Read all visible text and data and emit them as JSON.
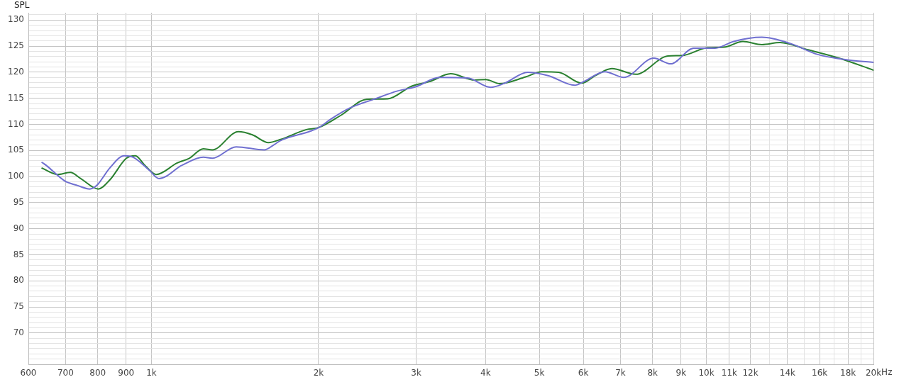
{
  "chart_data": {
    "type": "line",
    "ylabel": "SPL",
    "log": "x",
    "grid": true,
    "legend": false,
    "marker": "none",
    "line_style": "solid",
    "xlim": [
      600,
      20000
    ],
    "ylim": [
      64,
      131.4
    ],
    "xticks": [
      600,
      700,
      800,
      900,
      {
        "value": 1000,
        "label": "1k"
      },
      {
        "value": 2000,
        "label": "2k"
      },
      {
        "value": 3000,
        "label": "3k"
      },
      {
        "value": 4000,
        "label": "4k"
      },
      {
        "value": 5000,
        "label": "5k"
      },
      {
        "value": 6000,
        "label": "6k"
      },
      {
        "value": 7000,
        "label": "7k"
      },
      {
        "value": 8000,
        "label": "8k"
      },
      {
        "value": 9000,
        "label": "9k"
      },
      {
        "value": 10000,
        "label": "10k"
      },
      {
        "value": 11000,
        "label": "11k"
      },
      {
        "value": 12000,
        "label": "12k"
      },
      {
        "value": 13000,
        "label": null
      },
      {
        "value": 14000,
        "label": "14k"
      },
      {
        "value": 15000,
        "label": null
      },
      {
        "value": 16000,
        "label": "16k"
      },
      {
        "value": 17000,
        "label": null
      },
      {
        "value": 18000,
        "label": "18k"
      },
      {
        "value": 19000,
        "label": null
      },
      {
        "value": 20000,
        "label": "20k"
      }
    ],
    "xlabel": "Hz",
    "yticks": [
      {
        "value": 65,
        "label": null
      },
      {
        "value": 66,
        "label": null
      },
      {
        "value": 67,
        "label": null
      },
      {
        "value": 68,
        "label": null
      },
      {
        "value": 69,
        "label": null
      },
      70,
      {
        "value": 71,
        "label": null
      },
      {
        "value": 72,
        "label": null
      },
      {
        "value": 73,
        "label": null
      },
      {
        "value": 74,
        "label": null
      },
      75,
      {
        "value": 76,
        "label": null
      },
      {
        "value": 77,
        "label": null
      },
      {
        "value": 78,
        "label": null
      },
      {
        "value": 79,
        "label": null
      },
      80,
      {
        "value": 81,
        "label": null
      },
      {
        "value": 82,
        "label": null
      },
      {
        "value": 83,
        "label": null
      },
      {
        "value": 84,
        "label": null
      },
      85,
      {
        "value": 86,
        "label": null
      },
      {
        "value": 87,
        "label": null
      },
      {
        "value": 88,
        "label": null
      },
      {
        "value": 89,
        "label": null
      },
      90,
      {
        "value": 91,
        "label": null
      },
      {
        "value": 92,
        "label": null
      },
      {
        "value": 93,
        "label": null
      },
      {
        "value": 94,
        "label": null
      },
      95,
      {
        "value": 96,
        "label": null
      },
      {
        "value": 97,
        "label": null
      },
      {
        "value": 98,
        "label": null
      },
      {
        "value": 99,
        "label": null
      },
      100,
      {
        "value": 101,
        "label": null
      },
      {
        "value": 102,
        "label": null
      },
      {
        "value": 103,
        "label": null
      },
      {
        "value": 104,
        "label": null
      },
      105,
      {
        "value": 106,
        "label": null
      },
      {
        "value": 107,
        "label": null
      },
      {
        "value": 108,
        "label": null
      },
      {
        "value": 109,
        "label": null
      },
      110,
      {
        "value": 111,
        "label": null
      },
      {
        "value": 112,
        "label": null
      },
      {
        "value": 113,
        "label": null
      },
      {
        "value": 114,
        "label": null
      },
      115,
      {
        "value": 116,
        "label": null
      },
      {
        "value": 117,
        "label": null
      },
      {
        "value": 118,
        "label": null
      },
      {
        "value": 119,
        "label": null
      },
      120,
      {
        "value": 121,
        "label": null
      },
      {
        "value": 122,
        "label": null
      },
      {
        "value": 123,
        "label": null
      },
      {
        "value": 124,
        "label": null
      },
      125,
      {
        "value": 126,
        "label": null
      },
      {
        "value": 127,
        "label": null
      },
      {
        "value": 128,
        "label": null
      },
      {
        "value": 129,
        "label": null
      },
      130,
      {
        "value": 131,
        "label": null
      }
    ],
    "series": [
      {
        "color": "#6f6fd0",
        "x": [
          635,
          645,
          699,
          735,
          774,
          797,
          842,
          893,
          927,
          991,
          1032,
          1137,
          1240,
          1287,
          1421,
          1597,
          1658,
          1708,
          1934,
          2003,
          2111,
          2284,
          2514,
          2775,
          2992,
          3304,
          3710,
          4085,
          4330,
          4764,
          5199,
          5789,
          6012,
          6560,
          7096,
          8041,
          8621,
          9491,
          10356,
          11201,
          12586,
          14256,
          15877,
          18150,
          20000
        ],
        "values": [
          102.7,
          102.2,
          99.1,
          98.3,
          97.6,
          98.3,
          101.7,
          104.0,
          103.7,
          101.2,
          99.6,
          102.2,
          103.7,
          103.5,
          105.7,
          105.1,
          106.0,
          106.9,
          108.7,
          109.4,
          111.1,
          113.2,
          114.8,
          116.4,
          117.2,
          119.0,
          118.9,
          117.1,
          117.9,
          120.0,
          119.3,
          117.5,
          118.2,
          120.1,
          119.0,
          122.7,
          121.6,
          124.6,
          124.6,
          125.9,
          126.7,
          125.4,
          123.4,
          122.3,
          121.9
        ]
      },
      {
        "color": "#2a8030",
        "x": [
          635,
          677,
          714,
          746,
          802,
          842,
          901,
          935,
          974,
          1020,
          1113,
          1170,
          1240,
          1287,
          1434,
          1520,
          1625,
          1708,
          1901,
          2003,
          2199,
          2441,
          2665,
          2941,
          3171,
          3460,
          3820,
          4003,
          4243,
          4723,
          5050,
          5416,
          5961,
          6317,
          6754,
          7458,
          8522,
          9032,
          10058,
          10755,
          11636,
          12586,
          13570,
          15244,
          17330,
          20000
        ],
        "values": [
          101.6,
          100.4,
          100.8,
          99.6,
          97.6,
          99.4,
          103.5,
          104.0,
          102.1,
          100.4,
          102.6,
          103.5,
          105.3,
          105.1,
          108.6,
          108.0,
          106.5,
          107.1,
          109.0,
          109.4,
          111.8,
          114.8,
          114.9,
          117.3,
          118.2,
          119.7,
          118.5,
          118.6,
          117.8,
          119.1,
          120.1,
          120.0,
          117.9,
          119.4,
          120.7,
          119.6,
          123.1,
          123.2,
          124.7,
          124.8,
          125.9,
          125.3,
          125.7,
          124.3,
          122.7,
          120.4
        ]
      }
    ]
  }
}
